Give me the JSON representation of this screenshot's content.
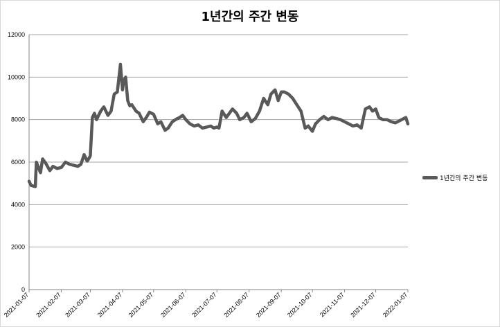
{
  "chart_data": {
    "type": "line",
    "title": "1년간의 주간 변동",
    "xlabel": "",
    "ylabel": "",
    "ylim": [
      0,
      12000
    ],
    "yticks": [
      0,
      2000,
      4000,
      6000,
      8000,
      10000,
      12000
    ],
    "xticks": [
      "2021-01-07",
      "2021-02-07",
      "2021-03-07",
      "2021-04-07",
      "2021-05-07",
      "2021-06-07",
      "2021-07-07",
      "2021-08-07",
      "2021-09-07",
      "2021-10-07",
      "2021-11-07",
      "2021-12-07",
      "2022-01-07"
    ],
    "grid": "horizontal",
    "legend_position": "right",
    "series": [
      {
        "name": "1년간의 주간 변동",
        "color": "#595959",
        "x": [
          "2021-01-07",
          "2021-01-09",
          "2021-01-13",
          "2021-01-14",
          "2021-01-18",
          "2021-01-20",
          "2021-01-23",
          "2021-01-27",
          "2021-01-30",
          "2021-02-03",
          "2021-02-07",
          "2021-02-11",
          "2021-02-15",
          "2021-02-19",
          "2021-02-23",
          "2021-02-26",
          "2021-03-01",
          "2021-03-04",
          "2021-03-06",
          "2021-03-07",
          "2021-03-09",
          "2021-03-11",
          "2021-03-13",
          "2021-03-15",
          "2021-03-17",
          "2021-03-20",
          "2021-03-24",
          "2021-03-27",
          "2021-03-30",
          "2021-04-02",
          "2021-04-05",
          "2021-04-07",
          "2021-04-08",
          "2021-04-10",
          "2021-04-12",
          "2021-04-14",
          "2021-04-16",
          "2021-04-20",
          "2021-04-23",
          "2021-04-27",
          "2021-04-30",
          "2021-05-03",
          "2021-05-07",
          "2021-05-11",
          "2021-05-14",
          "2021-05-18",
          "2021-05-21",
          "2021-05-25",
          "2021-05-28",
          "2021-06-01",
          "2021-06-04",
          "2021-06-07",
          "2021-06-11",
          "2021-06-15",
          "2021-06-19",
          "2021-06-23",
          "2021-06-27",
          "2021-07-01",
          "2021-07-04",
          "2021-07-07",
          "2021-07-09",
          "2021-07-12",
          "2021-07-16",
          "2021-07-19",
          "2021-07-22",
          "2021-07-26",
          "2021-07-29",
          "2021-08-02",
          "2021-08-05",
          "2021-08-09",
          "2021-08-13",
          "2021-08-17",
          "2021-08-21",
          "2021-08-25",
          "2021-08-28",
          "2021-09-01",
          "2021-09-04",
          "2021-09-07",
          "2021-09-10",
          "2021-09-14",
          "2021-09-18",
          "2021-09-22",
          "2021-09-26",
          "2021-09-30",
          "2021-10-03",
          "2021-10-07",
          "2021-10-10",
          "2021-10-14",
          "2021-10-18",
          "2021-10-22",
          "2021-10-26",
          "2021-10-30",
          "2021-11-03",
          "2021-11-07",
          "2021-11-11",
          "2021-11-15",
          "2021-11-19",
          "2021-11-23",
          "2021-11-27",
          "2021-12-01",
          "2021-12-04",
          "2021-12-07",
          "2021-12-10",
          "2021-12-14",
          "2021-12-18",
          "2021-12-22",
          "2021-12-26",
          "2021-12-30",
          "2022-01-03",
          "2022-01-05",
          "2022-01-07"
        ],
        "values": [
          5100,
          4900,
          4850,
          6000,
          5500,
          6150,
          5950,
          5600,
          5800,
          5700,
          5750,
          6000,
          5900,
          5850,
          5800,
          5900,
          6350,
          6050,
          6200,
          6300,
          8100,
          8300,
          8000,
          8200,
          8400,
          8600,
          8200,
          8400,
          9200,
          9300,
          10600,
          9400,
          9800,
          10000,
          8900,
          8650,
          8700,
          8400,
          8300,
          7900,
          8100,
          8350,
          8250,
          7800,
          7900,
          7500,
          7600,
          7900,
          8000,
          8100,
          8200,
          8000,
          7800,
          7700,
          7750,
          7600,
          7650,
          7700,
          7600,
          7650,
          7600,
          8400,
          8100,
          8300,
          8500,
          8300,
          8000,
          8100,
          8300,
          7900,
          8050,
          8400,
          9000,
          8700,
          9200,
          9400,
          8900,
          9300,
          9300,
          9200,
          9000,
          8700,
          8400,
          7600,
          7700,
          7450,
          7800,
          8000,
          8150,
          8000,
          8100,
          8050,
          8000,
          7900,
          7800,
          7700,
          7750,
          7600,
          8500,
          8600,
          8400,
          8500,
          8100,
          8000,
          8000,
          7900,
          7850,
          7950,
          8050,
          8100,
          7800
        ]
      }
    ]
  }
}
